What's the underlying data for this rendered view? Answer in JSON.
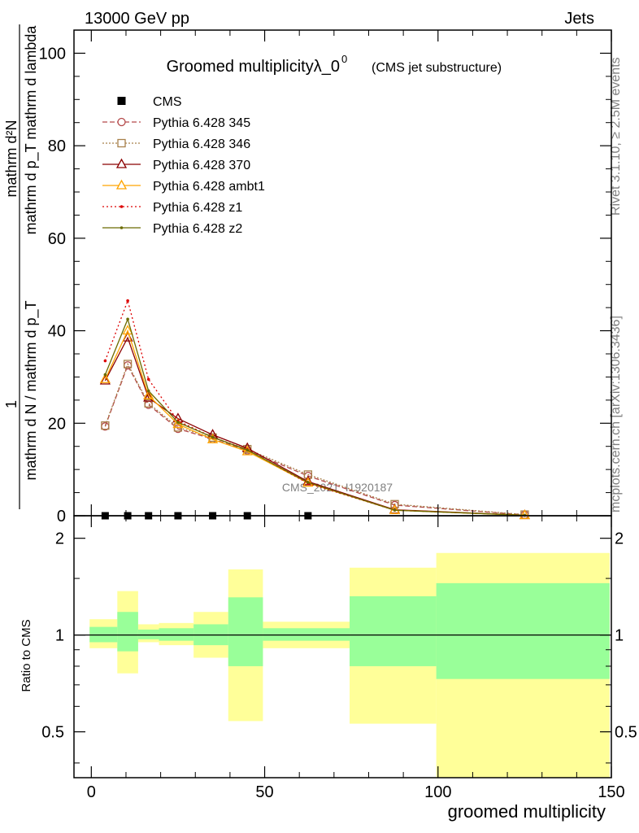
{
  "header": {
    "left": "13000 GeV pp",
    "right": "Jets",
    "rivet": "Rivet 3.1.10, ≥ 2.5M events",
    "mcplots": "mcplots.cern.ch [arXiv:1306.3436]",
    "watermark": "CMS_2021_I1920187"
  },
  "chart_data": [
    {
      "type": "line",
      "title": "Groomed multiplicityλ_0",
      "title_sup": "0",
      "subtitle": "(CMS jet substructure)",
      "ylabel_num": "mathrm d²N",
      "ylabel_den": "mathrm d p_T mathrm d lambda",
      "ylabel_pre": "1",
      "ylabel_pre_den": "mathrm d N / mathrm d p_T",
      "xlim": [
        -5,
        150
      ],
      "ylim": [
        0,
        105
      ],
      "yticks": [
        0,
        20,
        40,
        60,
        80,
        100
      ],
      "yticklabels": [
        "0",
        "20",
        "40",
        "60",
        "80",
        "100"
      ],
      "grid": false,
      "legend_position": "top-left",
      "data_series": {
        "name": "CMS",
        "color": "#000000",
        "x": [
          4,
          10.5,
          16.5,
          25,
          35,
          45,
          62.5
        ],
        "y": [
          0,
          0,
          0,
          0,
          0,
          0,
          0
        ]
      },
      "x": [
        4,
        10.5,
        16.5,
        25,
        35,
        45,
        62.5,
        87.5,
        125
      ],
      "series": [
        {
          "name": "Pythia 6.428 345",
          "color": "#b4494a",
          "dash": "6,3",
          "marker": "circle",
          "values": [
            19.3,
            32.5,
            24.0,
            18.8,
            16.6,
            14.1,
            8.6,
            2.3,
            0.2
          ]
        },
        {
          "name": "Pythia 6.428 346",
          "color": "#a8804a",
          "dash": "2,2",
          "marker": "square",
          "values": [
            19.5,
            32.8,
            24.3,
            19.1,
            16.9,
            14.4,
            8.9,
            2.5,
            0.25
          ]
        },
        {
          "name": "Pythia 6.428 370",
          "color": "#8b0000",
          "dash": "",
          "marker": "triangle",
          "values": [
            29.2,
            38.5,
            25.5,
            21.0,
            17.5,
            14.6,
            7.4,
            1.3,
            0.1
          ]
        },
        {
          "name": "Pythia 6.428 ambt1",
          "color": "#ffa500",
          "dash": "",
          "marker": "triangle",
          "values": [
            29.5,
            40.0,
            26.0,
            19.8,
            16.5,
            13.9,
            7.1,
            1.2,
            0.1
          ]
        },
        {
          "name": "Pythia 6.428 z1",
          "color": "#dd0000",
          "dash": "2,3",
          "marker": "dot",
          "values": [
            33.5,
            46.5,
            29.5,
            20.5,
            17.0,
            14.3,
            7.0,
            1.2,
            0.1
          ]
        },
        {
          "name": "Pythia 6.428 z2",
          "color": "#6b6b00",
          "dash": "",
          "marker": "dot",
          "values": [
            30.5,
            42.5,
            27.0,
            20.2,
            17.0,
            14.2,
            7.2,
            1.2,
            0.1
          ]
        }
      ]
    },
    {
      "type": "area",
      "ylabel": "Ratio to CMS",
      "xlabel": "groomed multiplicity",
      "xlim": [
        -5,
        150
      ],
      "ylim": [
        0.36,
        2.35
      ],
      "xticks": [
        0,
        50,
        100,
        150
      ],
      "xticklabels": [
        "0",
        "50",
        "100",
        "150"
      ],
      "yticks": [
        0.5,
        1,
        2
      ],
      "yticklabels": [
        "0.5",
        "1",
        "2"
      ],
      "reference_line": 1,
      "bins": [
        {
          "x0": -0.5,
          "x1": 7.5,
          "green": [
            0.95,
            1.06
          ],
          "yellow": [
            0.91,
            1.12
          ]
        },
        {
          "x0": 7.5,
          "x1": 13.5,
          "green": [
            0.89,
            1.18
          ],
          "yellow": [
            0.76,
            1.37
          ]
        },
        {
          "x0": 13.5,
          "x1": 19.5,
          "green": [
            0.97,
            1.04
          ],
          "yellow": [
            0.95,
            1.08
          ]
        },
        {
          "x0": 19.5,
          "x1": 29.5,
          "green": [
            0.96,
            1.05
          ],
          "yellow": [
            0.93,
            1.09
          ]
        },
        {
          "x0": 29.5,
          "x1": 39.5,
          "green": [
            0.93,
            1.08
          ],
          "yellow": [
            0.85,
            1.18
          ]
        },
        {
          "x0": 39.5,
          "x1": 49.5,
          "green": [
            0.8,
            1.31
          ],
          "yellow": [
            0.54,
            1.6
          ]
        },
        {
          "x0": 49.5,
          "x1": 74.5,
          "green": [
            0.96,
            1.05
          ],
          "yellow": [
            0.91,
            1.1
          ]
        },
        {
          "x0": 74.5,
          "x1": 99.5,
          "green": [
            0.8,
            1.32
          ],
          "yellow": [
            0.53,
            1.62
          ]
        },
        {
          "x0": 99.5,
          "x1": 149.5,
          "green": [
            0.73,
            1.45
          ],
          "yellow": [
            0.0,
            1.8
          ]
        }
      ]
    }
  ]
}
